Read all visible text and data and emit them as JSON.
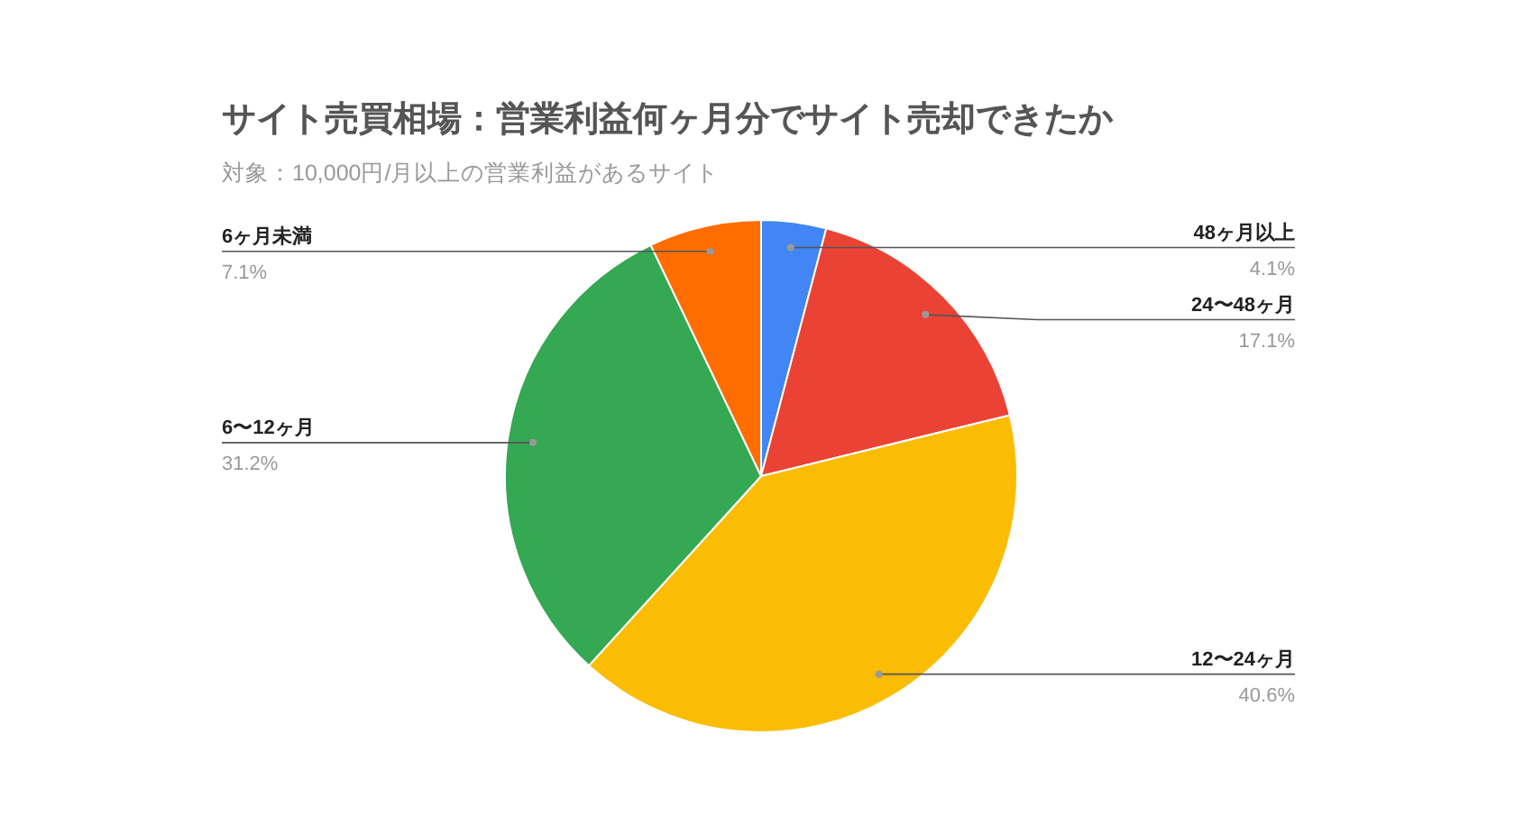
{
  "chart_data": {
    "type": "pie",
    "title": "サイト売買相場：営業利益何ヶ月分でサイト売却できたか",
    "subtitle": "対象：10,000円/月以上の営業利益があるサイト",
    "categories": [
      "48ヶ月以上",
      "24〜48ヶ月",
      "12〜24ヶ月",
      "6〜12ヶ月",
      "6ヶ月未満"
    ],
    "values": [
      4.1,
      17.1,
      40.6,
      31.2,
      7.1
    ],
    "colors": [
      "#4285f4",
      "#ea4335",
      "#fbbc04",
      "#34a853",
      "#ff6d01"
    ],
    "value_labels": [
      "4.1%",
      "17.1%",
      "40.6%",
      "31.2%",
      "7.1%"
    ]
  }
}
